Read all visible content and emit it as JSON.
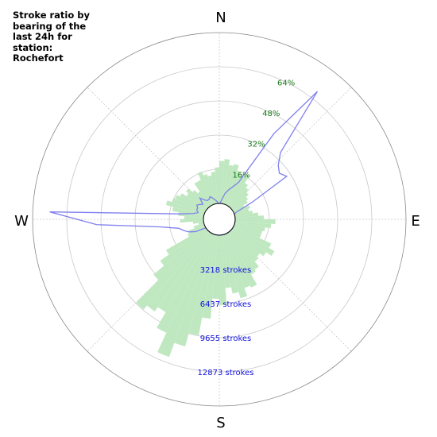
{
  "title": "Stroke ratio by bearing of the last 24h for station: Rochefort",
  "compass": {
    "n": "N",
    "e": "E",
    "s": "S",
    "w": "W"
  },
  "colors": {
    "bars": "#bfe8c0",
    "line": "#8080ee",
    "ratio_ticks": "#1a7a1a",
    "stroke_ticks": "#1010e0",
    "grid": "#c8c8c8"
  },
  "chart_data": {
    "type": "polar",
    "title": "Stroke ratio by bearing of the last 24h for station: Rochefort",
    "ratio_ticks": [
      "16%",
      "32%",
      "48%",
      "64%"
    ],
    "ratio_tick_values": [
      16,
      32,
      48,
      64
    ],
    "ratio_max": 80,
    "stroke_ticks": [
      "3218 strokes",
      "6437 strokes",
      "9655 strokes",
      "12873 strokes"
    ],
    "stroke_tick_values": [
      3218,
      6437,
      9655,
      12873
    ],
    "strokes_max": 16091,
    "grid": true,
    "series": [
      {
        "kind": "bar",
        "unit": "strokes",
        "sector_width_deg": 5,
        "bearings": [
          0,
          5,
          10,
          15,
          20,
          25,
          30,
          35,
          40,
          45,
          50,
          55,
          60,
          65,
          70,
          75,
          80,
          85,
          90,
          95,
          100,
          105,
          110,
          115,
          120,
          125,
          130,
          135,
          140,
          145,
          150,
          155,
          160,
          165,
          170,
          175,
          180,
          185,
          190,
          195,
          200,
          205,
          210,
          215,
          220,
          225,
          230,
          235,
          240,
          245,
          250,
          255,
          260,
          265,
          270,
          275,
          280,
          285,
          290,
          295,
          300,
          305,
          310,
          315,
          320,
          325,
          330,
          335,
          340,
          345,
          350,
          355
        ],
        "values": [
          4000,
          4200,
          3700,
          3900,
          3400,
          3100,
          3400,
          2700,
          2400,
          2100,
          1800,
          1600,
          1100,
          1600,
          1400,
          1700,
          2200,
          2700,
          3800,
          3400,
          2900,
          2700,
          2700,
          3900,
          4500,
          3900,
          3500,
          3700,
          4300,
          4500,
          5600,
          5400,
          6200,
          5600,
          5000,
          6600,
          6000,
          7900,
          9600,
          10900,
          12300,
          10300,
          8600,
          9100,
          9600,
          6600,
          5300,
          4300,
          1800,
          1600,
          1000,
          500,
          1000,
          2200,
          1800,
          2400,
          3000,
          3700,
          3200,
          3100,
          2800,
          2300,
          2600,
          2100,
          1700,
          2600,
          2600,
          3300,
          2900,
          2700,
          3000,
          3400
        ]
      },
      {
        "kind": "line",
        "unit": "ratio %",
        "bearings": [
          0,
          5,
          10,
          15,
          20,
          25,
          30,
          35,
          40,
          45,
          50,
          55,
          60,
          65,
          70,
          75,
          80,
          85,
          90,
          95,
          100,
          105,
          110,
          115,
          120,
          125,
          130,
          135,
          140,
          145,
          150,
          155,
          160,
          165,
          170,
          175,
          180,
          185,
          190,
          195,
          200,
          205,
          210,
          215,
          220,
          225,
          230,
          235,
          240,
          245,
          250,
          255,
          260,
          265,
          270,
          275,
          280,
          285,
          290,
          295,
          300,
          305,
          310,
          315,
          320,
          325,
          330,
          335,
          340,
          345,
          350,
          355
        ],
        "values": [
          0,
          2,
          5,
          7,
          9,
          12,
          40,
          68,
          35,
          30,
          28,
          30,
          10,
          1,
          0,
          0,
          0,
          0,
          0,
          0,
          0,
          0,
          0,
          0,
          0,
          0,
          0,
          0,
          0,
          0,
          0,
          0,
          0,
          0,
          0,
          0,
          0,
          0,
          0,
          0,
          0,
          0,
          0,
          0,
          0,
          0,
          0,
          0,
          5,
          8,
          10,
          12,
          20,
          50,
          72,
          12,
          5,
          3,
          4,
          4,
          5,
          4,
          3,
          6,
          4,
          3,
          3,
          4,
          3,
          2,
          1,
          0
        ]
      }
    ]
  }
}
